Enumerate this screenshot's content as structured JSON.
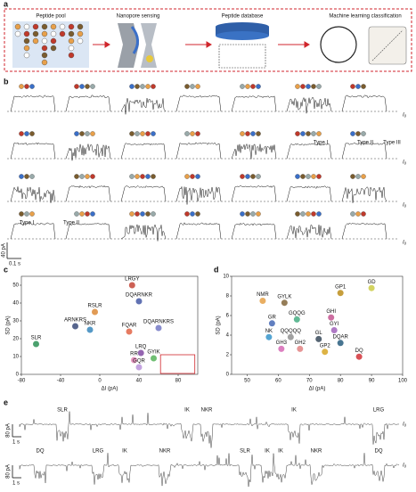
{
  "panel_labels": [
    "a",
    "b",
    "c",
    "d",
    "e"
  ],
  "workflow": {
    "steps": [
      "Peptide pool",
      "Nanopore sensing",
      "Peptide database",
      "Machine learning classification"
    ]
  },
  "traces_b": {
    "baseline_label": "I₀",
    "type_labels": [
      "Type I",
      "Type II",
      "Type III",
      "Type I",
      "Type II"
    ],
    "scale_current": "40 pA",
    "scale_time": "0.1 s"
  },
  "traces_e": {
    "baseline_label": "I₀",
    "scale_current": "80 pA",
    "scale_time": "1 s",
    "row1": [
      {
        "label": "SLR",
        "color": "#1a9a8a"
      },
      {
        "label": "IK",
        "color": "#222222"
      },
      {
        "label": "NKR",
        "color": "#1a9a8a"
      },
      {
        "label": "IK",
        "color": "#222222"
      },
      {
        "label": "LRG",
        "color": "#d0262c"
      }
    ],
    "row2": [
      {
        "label": "DQ",
        "color": "#d0262c"
      },
      {
        "label": "LRG",
        "color": "#d0262c"
      },
      {
        "label": "IK",
        "color": "#222222"
      },
      {
        "label": "NKR",
        "color": "#1a9a8a"
      },
      {
        "label": "SLR",
        "color": "#1a9a8a"
      },
      {
        "label": "IK",
        "color": "#222222"
      },
      {
        "label": "IK",
        "color": "#222222"
      },
      {
        "label": "NKR",
        "color": "#1a9a8a"
      },
      {
        "label": "DQ",
        "color": "#d0262c"
      }
    ]
  },
  "chart_data": [
    {
      "type": "scatter",
      "xlabel": "ΔI (pA)",
      "ylabel": "SD (pA)",
      "xlim": [
        -80,
        100
      ],
      "ylim": [
        0,
        55
      ],
      "xticks": [
        -80,
        -40,
        0,
        40,
        80
      ],
      "yticks": [
        0,
        10,
        20,
        30,
        40,
        50
      ],
      "series": [
        {
          "name": "LRGY",
          "color": "#c0392b",
          "x": [
            33
          ],
          "values": [
            50
          ]
        },
        {
          "name": "DQARNKR",
          "color": "#3a4fa0",
          "x": [
            40
          ],
          "values": [
            41
          ]
        },
        {
          "name": "RSLR",
          "color": "#d9822b",
          "x": [
            -5
          ],
          "values": [
            35
          ]
        },
        {
          "name": "ARNKRS",
          "color": "#2c3e70",
          "x": [
            -25
          ],
          "values": [
            27
          ]
        },
        {
          "name": "NKR",
          "color": "#2a7fb8",
          "x": [
            -10
          ],
          "values": [
            25
          ]
        },
        {
          "name": "FQAR",
          "color": "#e05a3a",
          "x": [
            30
          ],
          "values": [
            24
          ]
        },
        {
          "name": "DQARNKRS",
          "color": "#6a6fc0",
          "x": [
            60
          ],
          "values": [
            26
          ]
        },
        {
          "name": "SLR",
          "color": "#1e8a4a",
          "x": [
            -65
          ],
          "values": [
            17
          ]
        },
        {
          "name": "LRQ",
          "color": "#7a3e9d",
          "x": [
            42
          ],
          "values": [
            12
          ]
        },
        {
          "name": "RR",
          "color": "#e07bb0",
          "x": [
            35
          ],
          "values": [
            8
          ]
        },
        {
          "name": "GYIK",
          "color": "#4caf50",
          "x": [
            55
          ],
          "values": [
            9
          ]
        },
        {
          "name": "GQR",
          "color": "#b58cd8",
          "x": [
            40
          ],
          "values": [
            4
          ]
        }
      ]
    },
    {
      "type": "scatter",
      "xlabel": "ΔI (pA)",
      "ylabel": "SD (pA)",
      "xlim": [
        45,
        100
      ],
      "ylim": [
        0,
        10
      ],
      "xticks": [
        50,
        60,
        70,
        80,
        90,
        100
      ],
      "yticks": [
        0,
        2,
        4,
        6,
        8,
        10
      ],
      "series": [
        {
          "name": "NMR",
          "color": "#e39a3b",
          "x": [
            55
          ],
          "values": [
            7.5
          ]
        },
        {
          "name": "GYLK",
          "color": "#7a5c2e",
          "x": [
            62
          ],
          "values": [
            7.3
          ]
        },
        {
          "name": "GP1",
          "color": "#b8860b",
          "x": [
            80
          ],
          "values": [
            8.3
          ]
        },
        {
          "name": "GD",
          "color": "#c8c83a",
          "x": [
            90
          ],
          "values": [
            8.8
          ]
        },
        {
          "name": "GQQG",
          "color": "#3aa87a",
          "x": [
            66
          ],
          "values": [
            5.6
          ]
        },
        {
          "name": "GR",
          "color": "#3a5fb0",
          "x": [
            58
          ],
          "values": [
            5.2
          ]
        },
        {
          "name": "GHI",
          "color": "#c04a8a",
          "x": [
            77
          ],
          "values": [
            5.8
          ]
        },
        {
          "name": "GYI",
          "color": "#9b59b6",
          "x": [
            78
          ],
          "values": [
            4.5
          ]
        },
        {
          "name": "NK",
          "color": "#2a8fc8",
          "x": [
            57
          ],
          "values": [
            3.8
          ]
        },
        {
          "name": "QQQQQ",
          "color": "#8a8a8a",
          "x": [
            64
          ],
          "values": [
            3.8
          ]
        },
        {
          "name": "GL",
          "color": "#2c3e50",
          "x": [
            73
          ],
          "values": [
            3.6
          ]
        },
        {
          "name": "DQAR",
          "color": "#1a5276",
          "x": [
            80
          ],
          "values": [
            3.2
          ]
        },
        {
          "name": "GH3",
          "color": "#d35fb0",
          "x": [
            61
          ],
          "values": [
            2.6
          ]
        },
        {
          "name": "GH2",
          "color": "#e07b7b",
          "x": [
            67
          ],
          "values": [
            2.6
          ]
        },
        {
          "name": "GP2",
          "color": "#d4a017",
          "x": [
            75
          ],
          "values": [
            2.3
          ]
        },
        {
          "name": "DQ",
          "color": "#d0262c",
          "x": [
            86
          ],
          "values": [
            1.8
          ]
        }
      ]
    }
  ]
}
